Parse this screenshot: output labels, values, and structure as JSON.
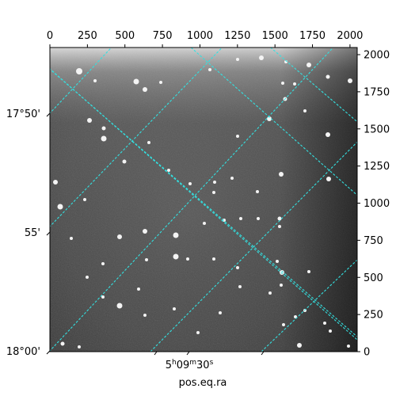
{
  "chart_data": {
    "type": "heatmap",
    "title": "",
    "image_pixel_range": {
      "x": [
        0,
        2048
      ],
      "y": [
        0,
        2048
      ]
    },
    "top_ticks": [
      {
        "value": 0,
        "label": "0"
      },
      {
        "value": 250,
        "label": "250"
      },
      {
        "value": 500,
        "label": "500"
      },
      {
        "value": 750,
        "label": "750"
      },
      {
        "value": 1000,
        "label": "1000"
      },
      {
        "value": 1250,
        "label": "1250"
      },
      {
        "value": 1500,
        "label": "1500"
      },
      {
        "value": 1750,
        "label": "1750"
      },
      {
        "value": 2000,
        "label": "2000"
      }
    ],
    "right_ticks": [
      {
        "value": 0,
        "label": "0"
      },
      {
        "value": 250,
        "label": "250"
      },
      {
        "value": 500,
        "label": "500"
      },
      {
        "value": 750,
        "label": "750"
      },
      {
        "value": 1000,
        "label": "1000"
      },
      {
        "value": 1250,
        "label": "1250"
      },
      {
        "value": 1500,
        "label": "1500"
      },
      {
        "value": 1750,
        "label": "1750"
      },
      {
        "value": 2000,
        "label": "2000"
      }
    ],
    "dec_ticks": [
      {
        "label": "17°50'"
      },
      {
        "label": "55'"
      },
      {
        "label": "18°00'"
      }
    ],
    "ra_ticks": [
      {
        "label_hours": "5",
        "label_h": "h",
        "label_minutes": "09",
        "label_m": "m",
        "label_seconds": "30",
        "label_s": "s"
      }
    ],
    "xlabel": "pos.eq.ra",
    "ylabel": "",
    "grid": true,
    "grid_color": "#33e0e0",
    "colormap": "gray"
  }
}
